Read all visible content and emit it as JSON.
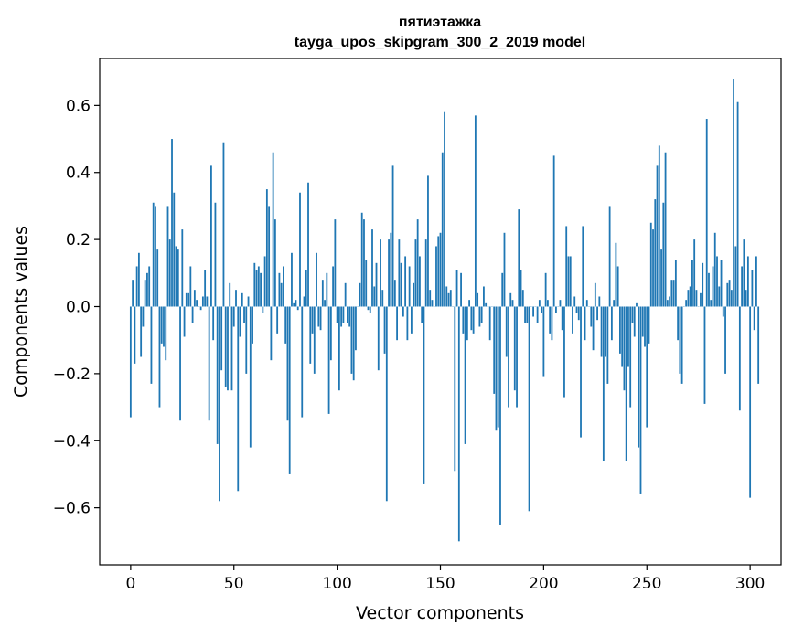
{
  "chart_data": {
    "type": "bar",
    "title": "пятиэтажка",
    "subtitle": "tayga_upos_skipgram_300_2_2019 model",
    "xlabel": "Vector components",
    "ylabel": "Components values",
    "xlim": [
      -15,
      315
    ],
    "ylim": [
      -0.77,
      0.74
    ],
    "xticks": [
      0,
      50,
      100,
      150,
      200,
      250,
      300
    ],
    "yticks": [
      -0.6,
      -0.4,
      -0.2,
      0.0,
      0.2,
      0.4,
      0.6
    ],
    "ytick_labels": [
      "−0.6",
      "−0.4",
      "−0.2",
      "0.0",
      "0.2",
      "0.4",
      "0.6"
    ],
    "bar_color": "#1f77b4",
    "grid": false,
    "values": [
      -0.33,
      0.08,
      -0.17,
      0.12,
      0.16,
      -0.15,
      -0.06,
      0.08,
      0.1,
      0.12,
      -0.23,
      0.31,
      0.3,
      0.17,
      -0.3,
      -0.11,
      -0.12,
      -0.16,
      0.3,
      0.2,
      0.5,
      0.34,
      0.18,
      0.17,
      -0.34,
      0.23,
      -0.09,
      0.04,
      0.04,
      0.12,
      -0.05,
      0.05,
      0.02,
      0.0,
      -0.01,
      0.03,
      0.11,
      0.03,
      -0.34,
      0.42,
      -0.1,
      0.31,
      -0.41,
      -0.58,
      -0.19,
      0.49,
      -0.24,
      -0.25,
      0.07,
      -0.25,
      -0.06,
      0.05,
      -0.55,
      -0.09,
      0.04,
      -0.05,
      -0.2,
      0.03,
      -0.42,
      -0.11,
      0.13,
      0.11,
      0.12,
      0.1,
      -0.02,
      0.15,
      0.35,
      0.3,
      -0.16,
      0.46,
      0.26,
      -0.08,
      0.1,
      0.07,
      0.12,
      -0.11,
      -0.34,
      -0.5,
      0.16,
      0.01,
      0.02,
      -0.01,
      0.34,
      -0.33,
      0.03,
      0.11,
      0.37,
      -0.17,
      -0.08,
      -0.2,
      0.16,
      -0.06,
      -0.07,
      0.08,
      0.02,
      0.1,
      -0.32,
      -0.16,
      0.12,
      0.26,
      -0.05,
      -0.25,
      -0.06,
      -0.05,
      0.07,
      -0.05,
      -0.06,
      -0.2,
      -0.22,
      -0.13,
      0.0,
      0.07,
      0.28,
      0.26,
      0.14,
      -0.01,
      -0.02,
      0.23,
      0.06,
      0.13,
      -0.19,
      0.2,
      0.05,
      -0.14,
      -0.58,
      0.2,
      0.22,
      0.42,
      0.08,
      -0.1,
      0.2,
      0.13,
      -0.03,
      0.15,
      -0.1,
      0.12,
      -0.08,
      0.07,
      0.2,
      0.26,
      0.15,
      -0.05,
      -0.53,
      0.2,
      0.39,
      0.05,
      0.02,
      0.0,
      0.18,
      0.21,
      0.22,
      0.46,
      0.58,
      0.06,
      0.04,
      0.05,
      0.0,
      -0.49,
      0.11,
      -0.7,
      0.1,
      -0.08,
      -0.41,
      -0.1,
      0.02,
      -0.07,
      -0.08,
      0.57,
      0.04,
      -0.06,
      -0.05,
      0.06,
      0.01,
      0.0,
      -0.1,
      0.0,
      -0.26,
      -0.37,
      -0.36,
      -0.65,
      0.1,
      0.22,
      -0.15,
      -0.3,
      0.04,
      0.02,
      -0.25,
      -0.3,
      0.29,
      0.11,
      0.05,
      -0.05,
      -0.05,
      -0.61,
      0.0,
      -0.03,
      0.0,
      -0.05,
      0.02,
      -0.02,
      -0.21,
      0.1,
      0.02,
      -0.08,
      -0.1,
      0.45,
      -0.02,
      0.0,
      0.02,
      -0.07,
      -0.27,
      0.24,
      0.15,
      0.15,
      -0.08,
      0.03,
      -0.02,
      -0.04,
      -0.39,
      0.24,
      -0.1,
      0.02,
      0.0,
      -0.06,
      -0.13,
      0.07,
      -0.04,
      0.03,
      -0.15,
      -0.46,
      -0.15,
      -0.23,
      0.3,
      -0.1,
      0.02,
      0.19,
      0.12,
      -0.14,
      -0.18,
      -0.25,
      -0.46,
      -0.18,
      -0.3,
      -0.05,
      -0.09,
      0.01,
      -0.42,
      -0.56,
      -0.09,
      -0.12,
      -0.36,
      -0.11,
      0.25,
      0.23,
      0.32,
      0.42,
      0.48,
      0.17,
      0.31,
      0.46,
      0.02,
      0.03,
      0.08,
      0.08,
      0.14,
      -0.1,
      -0.2,
      -0.23,
      0.0,
      0.02,
      0.05,
      0.06,
      0.14,
      0.2,
      0.05,
      0.0,
      0.04,
      0.13,
      -0.29,
      0.56,
      0.1,
      0.02,
      0.12,
      0.22,
      0.15,
      0.06,
      0.14,
      -0.03,
      -0.2,
      0.07,
      0.08,
      0.05,
      0.68,
      0.18,
      0.61,
      -0.31,
      0.12,
      0.2,
      0.05,
      0.15,
      -0.57,
      0.11,
      -0.07,
      0.15,
      -0.23
    ]
  }
}
